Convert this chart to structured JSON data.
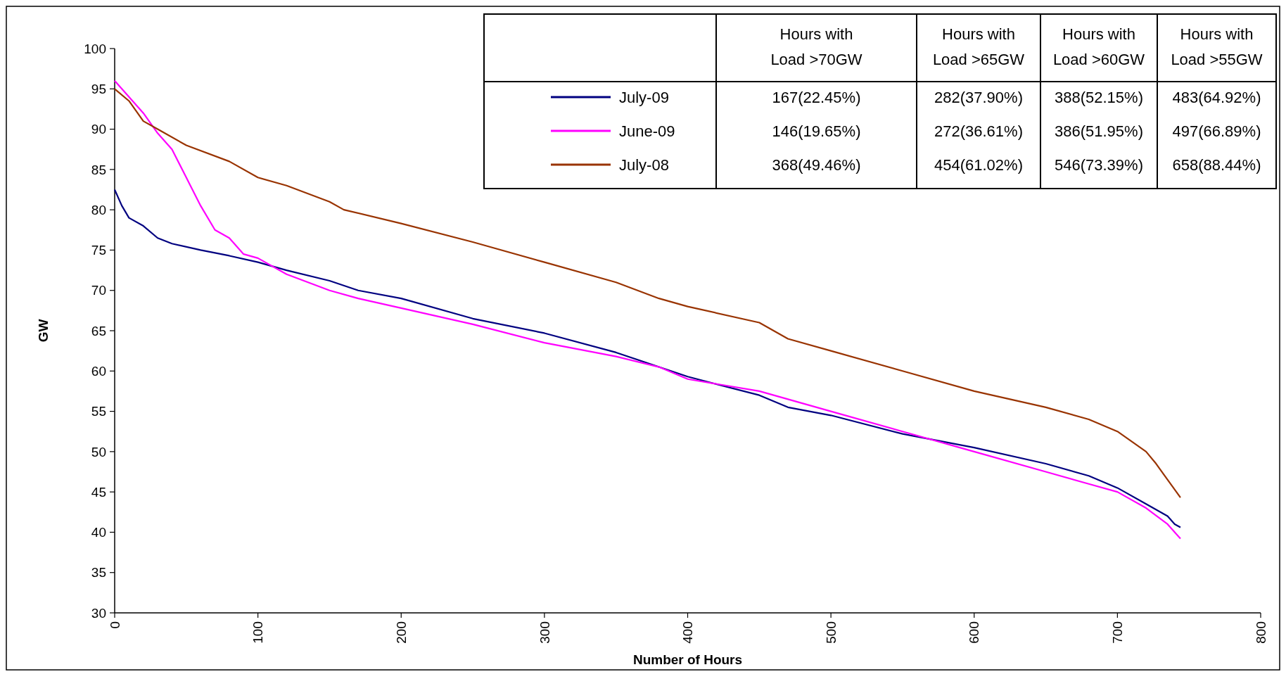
{
  "chart_data": {
    "type": "line",
    "xlabel": "Number of Hours",
    "ylabel": "GW",
    "xlim": [
      0,
      800
    ],
    "xticks": [
      0,
      100,
      200,
      300,
      400,
      500,
      600,
      700,
      800
    ],
    "ylim": [
      30,
      100
    ],
    "yticks": [
      30,
      35,
      40,
      45,
      50,
      55,
      60,
      65,
      70,
      75,
      80,
      85,
      90,
      95,
      100
    ],
    "legend": "top",
    "annotations": [
      "Hours with\nLoad >70GW",
      "Hours with\nLoad >65GW",
      "Hours with\nLoad >60GW",
      "Hours with\nLoad >55GW",
      "167(22.45%)",
      "282(37.90%)",
      "388(52.15%)",
      "483(64.92%)",
      "146(19.65%)",
      "272(36.61%)",
      "386(51.95%)",
      "497(66.89%)",
      "368(49.46%)",
      "454(61.02%)",
      "546(73.39%)",
      "658(88.44%)"
    ],
    "series": [
      {
        "name": "July-09",
        "color": "#000080",
        "x": [
          0,
          5,
          10,
          20,
          30,
          40,
          60,
          80,
          100,
          120,
          150,
          170,
          200,
          250,
          300,
          350,
          400,
          450,
          470,
          500,
          550,
          600,
          650,
          680,
          700,
          720,
          735,
          740,
          744
        ],
        "values": [
          82.5,
          80.5,
          79,
          78,
          76.5,
          75.8,
          75,
          74.3,
          73.5,
          72.5,
          71.2,
          70,
          69,
          66.5,
          64.7,
          62.3,
          59.3,
          57,
          55.5,
          54.5,
          52.2,
          50.5,
          48.5,
          47,
          45.5,
          43.5,
          42,
          41,
          40.6
        ]
      },
      {
        "name": "June-09",
        "color": "#ff00ff",
        "x": [
          0,
          10,
          20,
          30,
          40,
          50,
          60,
          70,
          80,
          90,
          100,
          120,
          150,
          170,
          200,
          250,
          300,
          350,
          380,
          400,
          450,
          500,
          550,
          600,
          650,
          680,
          700,
          720,
          735,
          744
        ],
        "values": [
          96,
          94,
          92,
          89.5,
          87.5,
          84,
          80.5,
          77.5,
          76.5,
          74.5,
          74,
          72,
          70,
          69,
          67.8,
          65.8,
          63.5,
          61.8,
          60.5,
          59,
          57.5,
          55,
          52.5,
          50,
          47.5,
          46,
          45,
          43,
          41,
          39.2
        ]
      },
      {
        "name": "July-08",
        "color": "#993300",
        "x": [
          0,
          10,
          20,
          30,
          50,
          80,
          100,
          120,
          150,
          160,
          200,
          250,
          300,
          350,
          380,
          400,
          450,
          470,
          500,
          550,
          600,
          650,
          680,
          700,
          720,
          727,
          733,
          744
        ],
        "values": [
          95,
          93.5,
          91,
          90,
          88,
          86,
          84,
          83,
          81,
          80,
          78.3,
          76,
          73.5,
          71,
          69,
          68,
          66,
          64,
          62.5,
          60,
          57.5,
          55.5,
          54,
          52.5,
          50,
          48.5,
          47,
          44.3
        ]
      }
    ]
  }
}
